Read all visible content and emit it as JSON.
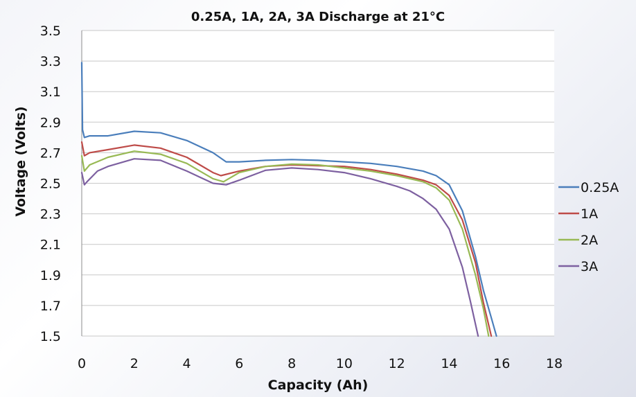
{
  "chart_data": {
    "type": "line",
    "title": "0.25A, 1A, 2A, 3A Discharge at 21°C",
    "xlabel": "Capacity (Ah)",
    "ylabel": "Voltage (Volts)",
    "xlim": [
      0,
      18
    ],
    "ylim": [
      1.5,
      3.5
    ],
    "xticks": [
      0,
      2,
      4,
      6,
      8,
      10,
      12,
      14,
      16,
      18
    ],
    "yticks": [
      1.5,
      1.7,
      1.9,
      2.1,
      2.3,
      2.5,
      2.7,
      2.9,
      3.1,
      3.3,
      3.5
    ],
    "ytick_labels": [
      "1.5",
      "1.7",
      "1.9",
      "2.1",
      "2.3",
      "2.5",
      "2.7",
      "2.9",
      "3.1",
      "3.3",
      "3.5"
    ],
    "grid": "horizontal",
    "legend_position": "right",
    "series": [
      {
        "name": "0.25A",
        "color": "#4a7ebb",
        "points": [
          [
            0,
            3.29
          ],
          [
            0.03,
            2.85
          ],
          [
            0.1,
            2.8
          ],
          [
            0.3,
            2.81
          ],
          [
            1,
            2.81
          ],
          [
            2,
            2.84
          ],
          [
            3,
            2.83
          ],
          [
            4,
            2.78
          ],
          [
            5,
            2.7
          ],
          [
            5.5,
            2.64
          ],
          [
            6,
            2.64
          ],
          [
            7,
            2.65
          ],
          [
            8,
            2.655
          ],
          [
            9,
            2.65
          ],
          [
            10,
            2.64
          ],
          [
            11,
            2.63
          ],
          [
            12,
            2.61
          ],
          [
            13,
            2.58
          ],
          [
            13.5,
            2.55
          ],
          [
            14,
            2.49
          ],
          [
            14.5,
            2.32
          ],
          [
            15,
            2.02
          ],
          [
            15.3,
            1.8
          ],
          [
            15.6,
            1.62
          ],
          [
            15.8,
            1.5
          ]
        ]
      },
      {
        "name": "1A",
        "color": "#be4b48",
        "points": [
          [
            0,
            2.77
          ],
          [
            0.1,
            2.68
          ],
          [
            0.3,
            2.7
          ],
          [
            1,
            2.72
          ],
          [
            2,
            2.75
          ],
          [
            3,
            2.73
          ],
          [
            4,
            2.67
          ],
          [
            4.5,
            2.62
          ],
          [
            5,
            2.57
          ],
          [
            5.3,
            2.55
          ],
          [
            6,
            2.58
          ],
          [
            7,
            2.61
          ],
          [
            8,
            2.62
          ],
          [
            9,
            2.615
          ],
          [
            10,
            2.61
          ],
          [
            11,
            2.59
          ],
          [
            12,
            2.56
          ],
          [
            13,
            2.52
          ],
          [
            13.5,
            2.49
          ],
          [
            14,
            2.42
          ],
          [
            14.5,
            2.26
          ],
          [
            15,
            1.98
          ],
          [
            15.3,
            1.72
          ],
          [
            15.6,
            1.5
          ]
        ]
      },
      {
        "name": "2A",
        "color": "#98b954",
        "points": [
          [
            0,
            2.68
          ],
          [
            0.1,
            2.58
          ],
          [
            0.3,
            2.62
          ],
          [
            1,
            2.67
          ],
          [
            2,
            2.71
          ],
          [
            3,
            2.69
          ],
          [
            4,
            2.63
          ],
          [
            4.5,
            2.58
          ],
          [
            5,
            2.53
          ],
          [
            5.4,
            2.51
          ],
          [
            6,
            2.57
          ],
          [
            7,
            2.61
          ],
          [
            8,
            2.625
          ],
          [
            9,
            2.62
          ],
          [
            10,
            2.6
          ],
          [
            11,
            2.58
          ],
          [
            12,
            2.55
          ],
          [
            13,
            2.51
          ],
          [
            13.5,
            2.47
          ],
          [
            14,
            2.39
          ],
          [
            14.5,
            2.2
          ],
          [
            15,
            1.9
          ],
          [
            15.3,
            1.68
          ],
          [
            15.5,
            1.5
          ]
        ]
      },
      {
        "name": "3A",
        "color": "#7d60a0",
        "points": [
          [
            0,
            2.57
          ],
          [
            0.1,
            2.49
          ],
          [
            0.2,
            2.51
          ],
          [
            0.6,
            2.58
          ],
          [
            1,
            2.61
          ],
          [
            2,
            2.66
          ],
          [
            3,
            2.65
          ],
          [
            4,
            2.58
          ],
          [
            4.5,
            2.54
          ],
          [
            5,
            2.5
          ],
          [
            5.5,
            2.49
          ],
          [
            6,
            2.52
          ],
          [
            7,
            2.585
          ],
          [
            8,
            2.6
          ],
          [
            9,
            2.59
          ],
          [
            10,
            2.57
          ],
          [
            11,
            2.53
          ],
          [
            12,
            2.48
          ],
          [
            12.5,
            2.45
          ],
          [
            13,
            2.4
          ],
          [
            13.5,
            2.33
          ],
          [
            14,
            2.2
          ],
          [
            14.5,
            1.95
          ],
          [
            14.8,
            1.73
          ],
          [
            15.1,
            1.5
          ]
        ]
      }
    ]
  }
}
